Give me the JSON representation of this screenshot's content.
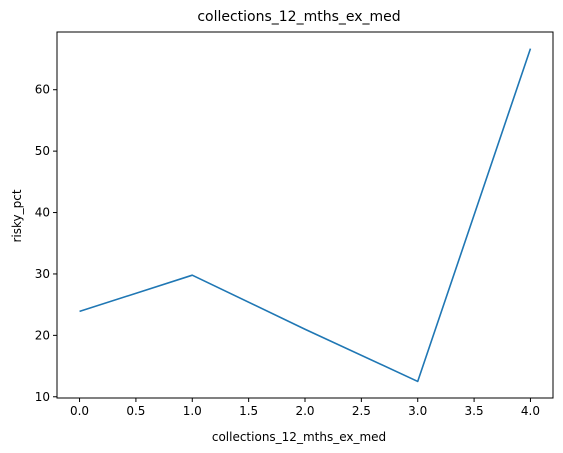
{
  "chart_data": {
    "type": "line",
    "title": "collections_12_mths_ex_med",
    "xlabel": "collections_12_mths_ex_med",
    "ylabel": "risky_pct",
    "x": [
      0,
      1,
      2,
      3,
      4
    ],
    "series": [
      {
        "values": [
          23.9,
          29.8,
          21.0,
          12.5,
          66.7
        ],
        "color": "#1f77b4"
      }
    ],
    "xlim": [
      -0.2,
      4.2
    ],
    "ylim": [
      9.8,
      69.4
    ],
    "xticks": [
      0.0,
      0.5,
      1.0,
      1.5,
      2.0,
      2.5,
      3.0,
      3.5,
      4.0
    ],
    "xtick_labels": [
      "0.0",
      "0.5",
      "1.0",
      "1.5",
      "2.0",
      "2.5",
      "3.0",
      "3.5",
      "4.0"
    ],
    "yticks": [
      10,
      20,
      30,
      40,
      50,
      60
    ],
    "ytick_labels": [
      "10",
      "20",
      "30",
      "40",
      "50",
      "60"
    ],
    "grid": false,
    "legend": false
  }
}
